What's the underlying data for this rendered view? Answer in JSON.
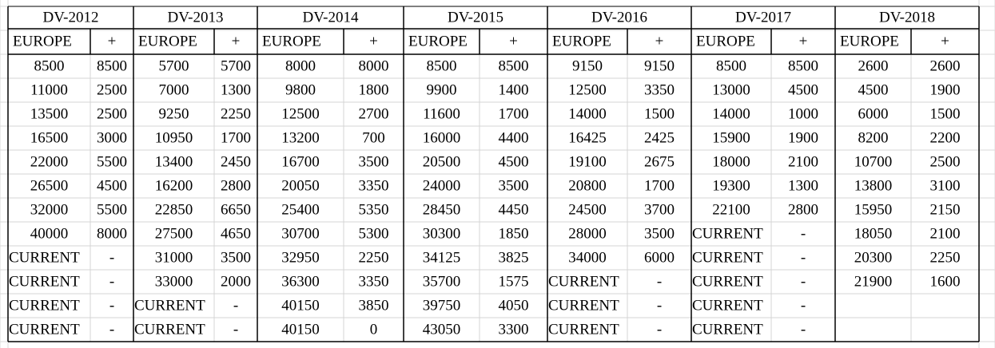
{
  "header": {
    "groups": [
      "DV-2012",
      "DV-2013",
      "DV-2014",
      "DV-2015",
      "DV-2016",
      "DV-2017",
      "DV-2018"
    ],
    "subheaders": [
      "EUROPE",
      "+",
      "EUROPE",
      "+",
      "EUROPE",
      "+",
      "EUROPE",
      "+",
      "EUROPE",
      "+",
      "EUROPE",
      "+",
      "EUROPE",
      "+"
    ]
  },
  "table": {
    "rows": [
      [
        "8500",
        "8500",
        "5700",
        "5700",
        "8000",
        "8000",
        "8500",
        "8500",
        "9150",
        "9150",
        "8500",
        "8500",
        "2600",
        "2600"
      ],
      [
        "11000",
        "2500",
        "7000",
        "1300",
        "9800",
        "1800",
        "9900",
        "1400",
        "12500",
        "3350",
        "13000",
        "4500",
        "4500",
        "1900"
      ],
      [
        "13500",
        "2500",
        "9250",
        "2250",
        "12500",
        "2700",
        "11600",
        "1700",
        "14000",
        "1500",
        "14000",
        "1000",
        "6000",
        "1500"
      ],
      [
        "16500",
        "3000",
        "10950",
        "1700",
        "13200",
        "700",
        "16000",
        "4400",
        "16425",
        "2425",
        "15900",
        "1900",
        "8200",
        "2200"
      ],
      [
        "22000",
        "5500",
        "13400",
        "2450",
        "16700",
        "3500",
        "20500",
        "4500",
        "19100",
        "2675",
        "18000",
        "2100",
        "10700",
        "2500"
      ],
      [
        "26500",
        "4500",
        "16200",
        "2800",
        "20050",
        "3350",
        "24000",
        "3500",
        "20800",
        "1700",
        "19300",
        "1300",
        "13800",
        "3100"
      ],
      [
        "32000",
        "5500",
        "22850",
        "6650",
        "25400",
        "5350",
        "28450",
        "4450",
        "24500",
        "3700",
        "22100",
        "2800",
        "15950",
        "2150"
      ],
      [
        "40000",
        "8000",
        "27500",
        "4650",
        "30700",
        "5300",
        "30300",
        "1850",
        "28000",
        "3500",
        "CURRENT",
        "-",
        "18050",
        "2100"
      ],
      [
        "CURRENT",
        "-",
        "31000",
        "3500",
        "32950",
        "2250",
        "34125",
        "3825",
        "34000",
        "6000",
        "CURRENT",
        "-",
        "20300",
        "2250"
      ],
      [
        "CURRENT",
        "-",
        "33000",
        "2000",
        "36300",
        "3350",
        "35700",
        "1575",
        "CURRENT",
        "-",
        "CURRENT",
        "-",
        "21900",
        "1600"
      ],
      [
        "CURRENT",
        "-",
        "CURRENT",
        "-",
        "40150",
        "3850",
        "39750",
        "4050",
        "CURRENT",
        "-",
        "CURRENT",
        "-"
      ],
      [
        "CURRENT",
        "-",
        "CURRENT",
        "-",
        "40150",
        "0",
        "43050",
        "3300",
        "CURRENT",
        "-",
        "CURRENT",
        "-"
      ]
    ]
  }
}
